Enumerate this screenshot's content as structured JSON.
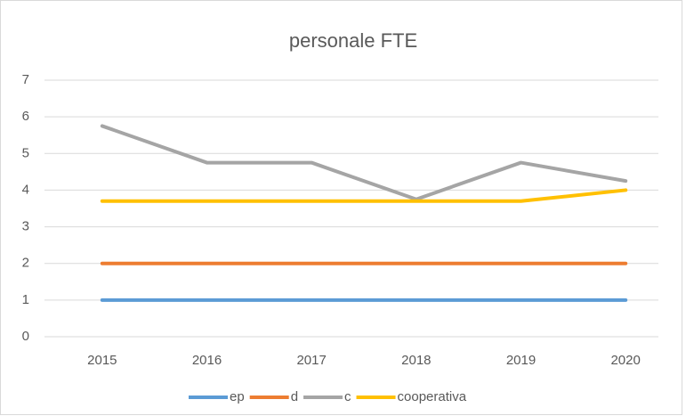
{
  "chart_data": {
    "type": "line",
    "title": "personale FTE",
    "categories": [
      "2015",
      "2016",
      "2017",
      "2018",
      "2019",
      "2020"
    ],
    "series": [
      {
        "name": "ep",
        "color": "#5b9bd5",
        "values": [
          1,
          1,
          1,
          1,
          1,
          1
        ]
      },
      {
        "name": "d",
        "color": "#ed7d31",
        "values": [
          2,
          2,
          2,
          2,
          2,
          2
        ]
      },
      {
        "name": "c",
        "color": "#a5a5a5",
        "values": [
          5.75,
          4.75,
          4.75,
          3.75,
          4.75,
          4.25
        ]
      },
      {
        "name": "cooperativa",
        "color": "#ffc000",
        "values": [
          3.7,
          3.7,
          3.7,
          3.7,
          3.7,
          4
        ]
      }
    ],
    "ylim": [
      0,
      7
    ],
    "yticks": [
      0,
      1,
      2,
      3,
      4,
      5,
      6,
      7
    ],
    "grid": true,
    "legend": "bottom"
  }
}
